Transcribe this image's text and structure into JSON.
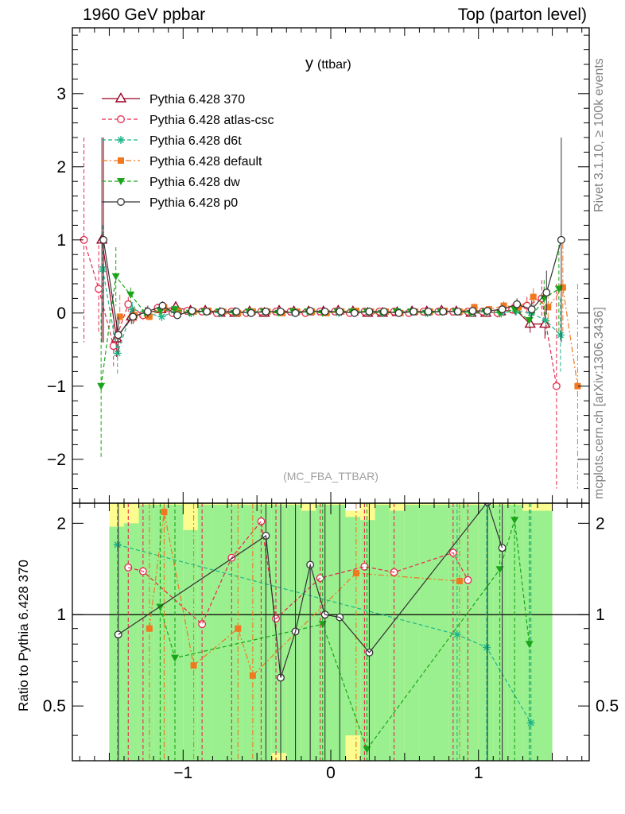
{
  "header": {
    "left": "1960 GeV ppbar",
    "right": "Top (parton level)"
  },
  "side": {
    "rivet": "Rivet 3.1.10, ≥ 100k events",
    "url": "mcplots.cern.ch [arXiv:1306.3436]"
  },
  "ratio_ylabel": "Ratio to Pythia 6.428 370",
  "chart_data": [
    {
      "type": "scatter",
      "title": "y",
      "title_suffix": "(ttbar)",
      "watermark": "(MC_FBA_TTBAR)",
      "xlim": [
        -1.75,
        1.75
      ],
      "ylim": [
        -2.6,
        3.9
      ],
      "yticks": [
        -2,
        -1,
        0,
        1,
        2,
        3
      ],
      "ytick_labels": [
        "−2",
        "−1",
        "0",
        "1",
        "2",
        "3"
      ],
      "x": [
        -1.65,
        -1.55,
        -1.45,
        -1.35,
        -1.25,
        -1.15,
        -1.05,
        -0.95,
        -0.85,
        -0.75,
        -0.65,
        -0.55,
        -0.45,
        -0.35,
        -0.25,
        -0.15,
        -0.05,
        0.05,
        0.15,
        0.25,
        0.35,
        0.45,
        0.55,
        0.65,
        0.75,
        0.85,
        0.95,
        1.05,
        1.15,
        1.25,
        1.35,
        1.45,
        1.55,
        1.65
      ],
      "series": [
        {
          "name": "Pythia 6.428 370",
          "color": "#9a0020",
          "marker": "triangle-open",
          "dash": "solid",
          "values": [
            null,
            1.0,
            -0.35,
            -0.05,
            0.0,
            0.05,
            0.08,
            0.03,
            0.03,
            0.0,
            0.0,
            0.02,
            0.0,
            0.03,
            0.02,
            0.02,
            0.02,
            0.03,
            0.02,
            0.0,
            0.0,
            0.01,
            0.02,
            0.02,
            0.03,
            0.02,
            0.0,
            0.0,
            0.02,
            0.05,
            -0.15,
            -0.15,
            null,
            null
          ],
          "errors": [
            null,
            1.4,
            0.25,
            0.1,
            0.08,
            0.06,
            0.05,
            0.04,
            0.04,
            0.04,
            0.04,
            0.04,
            0.04,
            0.04,
            0.04,
            0.04,
            0.04,
            0.04,
            0.04,
            0.04,
            0.04,
            0.04,
            0.04,
            0.04,
            0.04,
            0.04,
            0.05,
            0.05,
            0.06,
            0.08,
            0.12,
            0.2,
            null,
            null
          ]
        },
        {
          "name": "Pythia 6.428 atlas-csc",
          "color": "#e8284e",
          "marker": "circle-open",
          "dash": "dashed",
          "values": [
            1.0,
            0.33,
            -0.45,
            0.12,
            -0.03,
            0.07,
            0.0,
            0.03,
            0.02,
            0.0,
            0.02,
            0.0,
            0.02,
            0.02,
            0.02,
            0.0,
            0.02,
            0.02,
            0.0,
            0.02,
            0.02,
            0.02,
            0.0,
            0.02,
            0.02,
            0.02,
            0.02,
            0.02,
            0.0,
            0.05,
            0.1,
            0.2,
            -1.0,
            null
          ],
          "errors": [
            1.4,
            0.6,
            0.3,
            0.1,
            0.08,
            0.06,
            0.05,
            0.04,
            0.04,
            0.04,
            0.04,
            0.04,
            0.04,
            0.04,
            0.04,
            0.04,
            0.04,
            0.04,
            0.04,
            0.04,
            0.04,
            0.04,
            0.04,
            0.04,
            0.04,
            0.04,
            0.05,
            0.05,
            0.06,
            0.08,
            0.12,
            0.25,
            1.4,
            null
          ]
        },
        {
          "name": "Pythia 6.428 d6t",
          "color": "#1fb58a",
          "marker": "star",
          "dash": "dashed",
          "values": [
            null,
            0.6,
            -0.55,
            0.05,
            0.0,
            -0.05,
            0.03,
            0.0,
            0.02,
            0.0,
            0.02,
            0.0,
            0.02,
            0.02,
            0.0,
            0.02,
            0.02,
            0.0,
            0.02,
            0.02,
            0.0,
            0.02,
            0.02,
            0.0,
            0.02,
            0.02,
            0.0,
            0.02,
            0.0,
            0.03,
            0.0,
            -0.1,
            -0.3,
            null
          ],
          "errors": [
            null,
            0.6,
            0.3,
            0.1,
            0.08,
            0.06,
            0.05,
            0.04,
            0.04,
            0.04,
            0.04,
            0.04,
            0.04,
            0.04,
            0.04,
            0.04,
            0.04,
            0.04,
            0.04,
            0.04,
            0.04,
            0.04,
            0.04,
            0.04,
            0.04,
            0.04,
            0.05,
            0.05,
            0.06,
            0.08,
            0.12,
            0.2,
            0.5,
            null
          ]
        },
        {
          "name": "Pythia 6.428 default",
          "color": "#f07820",
          "marker": "square-filled",
          "dash": "dashdot",
          "values": [
            null,
            null,
            -0.05,
            -0.03,
            -0.05,
            0.08,
            0.02,
            0.02,
            0.03,
            0.02,
            0.0,
            0.02,
            0.02,
            0.0,
            0.02,
            0.02,
            0.0,
            0.02,
            0.03,
            0.02,
            0.02,
            0.0,
            0.02,
            0.02,
            0.03,
            0.02,
            0.08,
            0.05,
            0.1,
            0.08,
            0.22,
            0.08,
            0.35,
            -1.0
          ],
          "errors": [
            null,
            null,
            0.3,
            0.1,
            0.08,
            0.06,
            0.05,
            0.04,
            0.04,
            0.04,
            0.04,
            0.04,
            0.04,
            0.04,
            0.04,
            0.04,
            0.04,
            0.04,
            0.04,
            0.04,
            0.04,
            0.04,
            0.04,
            0.04,
            0.04,
            0.04,
            0.05,
            0.05,
            0.06,
            0.08,
            0.12,
            0.25,
            0.6,
            1.4
          ]
        },
        {
          "name": "Pythia 6.428 dw",
          "color": "#1aa518",
          "marker": "triangle-down-filled",
          "dash": "dashed",
          "values": [
            null,
            -1.0,
            0.5,
            0.25,
            0.0,
            0.03,
            0.05,
            0.0,
            0.02,
            0.02,
            0.0,
            0.02,
            0.02,
            0.0,
            0.02,
            0.02,
            0.0,
            0.02,
            0.02,
            0.02,
            0.0,
            0.02,
            0.02,
            0.0,
            0.02,
            0.02,
            0.0,
            0.02,
            0.0,
            0.05,
            -0.1,
            0.2,
            0.33,
            null
          ],
          "errors": [
            null,
            1.0,
            0.4,
            0.1,
            0.08,
            0.06,
            0.05,
            0.04,
            0.04,
            0.04,
            0.04,
            0.04,
            0.04,
            0.04,
            0.04,
            0.04,
            0.04,
            0.04,
            0.04,
            0.04,
            0.04,
            0.04,
            0.04,
            0.04,
            0.04,
            0.04,
            0.05,
            0.05,
            0.06,
            0.08,
            0.12,
            0.25,
            0.6,
            null
          ]
        },
        {
          "name": "Pythia 6.428 p0",
          "color": "#333333",
          "marker": "circle-open",
          "dash": "solid",
          "values": [
            null,
            1.0,
            -0.3,
            -0.05,
            0.02,
            0.1,
            -0.03,
            0.03,
            0.02,
            0.02,
            0.02,
            0.0,
            0.02,
            0.02,
            0.0,
            0.03,
            0.02,
            0.02,
            0.0,
            0.02,
            0.02,
            0.0,
            0.02,
            0.02,
            0.02,
            0.02,
            0.03,
            0.03,
            0.05,
            0.12,
            0.05,
            0.28,
            1.0,
            null
          ],
          "errors": [
            null,
            1.4,
            0.25,
            0.1,
            0.08,
            0.06,
            0.05,
            0.04,
            0.04,
            0.04,
            0.04,
            0.04,
            0.04,
            0.04,
            0.04,
            0.04,
            0.04,
            0.04,
            0.04,
            0.04,
            0.04,
            0.04,
            0.04,
            0.04,
            0.04,
            0.04,
            0.05,
            0.05,
            0.06,
            0.08,
            0.12,
            0.3,
            1.4,
            null
          ]
        }
      ]
    },
    {
      "type": "scatter",
      "xlim": [
        -1.75,
        1.75
      ],
      "ylim": [
        0.33,
        2.33
      ],
      "xticks": [
        -1,
        0,
        1
      ],
      "xtick_labels": [
        "−1",
        "0",
        "1"
      ],
      "yticks": [
        0.5,
        1,
        2
      ],
      "ytick_labels": [
        "0.5",
        "1",
        "2"
      ],
      "reference_line": 1,
      "band_edges": [
        -1.5,
        -1.4,
        -1.3,
        -1.2,
        -1.1,
        -1.0,
        -0.9,
        -0.8,
        -0.7,
        -0.6,
        -0.5,
        -0.4,
        -0.3,
        -0.2,
        -0.1,
        0.0,
        0.1,
        0.2,
        0.3,
        0.4,
        0.5,
        0.6,
        0.7,
        0.8,
        0.9,
        1.0,
        1.1,
        1.2,
        1.3,
        1.4,
        1.5
      ],
      "band_inner": [
        [
          0.3,
          1.95
        ],
        [
          0.3,
          2.0
        ],
        [
          0.3,
          2.3
        ],
        [
          0.3,
          2.3
        ],
        [
          0.3,
          2.3
        ],
        [
          0.3,
          1.9
        ],
        [
          0.3,
          2.3
        ],
        [
          0.3,
          2.3
        ],
        [
          0.3,
          2.3
        ],
        [
          0.3,
          2.3
        ],
        [
          0.3,
          2.3
        ],
        [
          0.35,
          2.3
        ],
        [
          0.3,
          2.3
        ],
        [
          0.3,
          2.2
        ],
        [
          0.3,
          2.3
        ],
        [
          0.3,
          2.3
        ],
        [
          0.4,
          2.1
        ],
        [
          0.3,
          2.05
        ],
        [
          0.3,
          2.3
        ],
        [
          0.3,
          2.2
        ],
        [
          0.3,
          2.3
        ],
        [
          0.3,
          2.3
        ],
        [
          0.3,
          2.3
        ],
        [
          0.3,
          2.3
        ],
        [
          0.3,
          2.3
        ],
        [
          0.3,
          2.3
        ],
        [
          0.3,
          2.3
        ],
        [
          0.3,
          2.3
        ],
        [
          0.3,
          2.2
        ],
        [
          0.3,
          2.2
        ]
      ],
      "band_outer": [
        [
          0.3,
          2.33
        ],
        [
          0.3,
          2.33
        ],
        [
          0.3,
          2.33
        ],
        [
          0.3,
          2.33
        ],
        [
          0.3,
          2.33
        ],
        [
          0.3,
          2.33
        ],
        [
          0.3,
          2.33
        ],
        [
          0.3,
          2.33
        ],
        [
          0.3,
          2.33
        ],
        [
          0.3,
          2.33
        ],
        [
          0.3,
          2.33
        ],
        [
          0.3,
          2.33
        ],
        [
          0.3,
          2.33
        ],
        [
          0.3,
          2.33
        ],
        [
          0.3,
          2.33
        ],
        [
          0.3,
          2.33
        ],
        [
          0.3,
          2.2
        ],
        [
          0.3,
          2.33
        ],
        [
          0.3,
          2.33
        ],
        [
          0.3,
          2.33
        ],
        [
          0.3,
          2.33
        ],
        [
          0.3,
          2.33
        ],
        [
          0.3,
          2.33
        ],
        [
          0.3,
          2.33
        ],
        [
          0.3,
          2.33
        ],
        [
          0.3,
          2.33
        ],
        [
          0.3,
          2.33
        ],
        [
          0.3,
          2.33
        ],
        [
          0.3,
          2.33
        ],
        [
          0.3,
          2.33
        ]
      ],
      "x": [
        -1.45,
        -1.35,
        -1.25,
        -1.15,
        -1.05,
        -0.95,
        -0.85,
        -0.75,
        -0.65,
        -0.55,
        -0.45,
        -0.35,
        -0.25,
        -0.15,
        -0.05,
        0.05,
        0.15,
        0.25,
        0.35,
        0.45,
        0.55,
        0.65,
        0.75,
        0.85,
        0.95,
        1.05,
        1.15,
        1.25,
        1.35,
        1.45
      ],
      "series": [
        {
          "name": "Pythia 6.428 atlas-csc",
          "color": "#e8284e",
          "marker": "circle-open",
          "dash": "dashed",
          "values": [
            null,
            1.43,
            1.39,
            null,
            null,
            null,
            0.93,
            null,
            1.54,
            null,
            2.03,
            0.97,
            null,
            null,
            1.32,
            null,
            null,
            1.44,
            null,
            1.38,
            null,
            null,
            null,
            1.6,
            1.3,
            null,
            null,
            null,
            null,
            null
          ]
        },
        {
          "name": "Pythia 6.428 d6t",
          "color": "#1fb58a",
          "marker": "star",
          "dash": "dashed",
          "values": [
            1.7,
            null,
            null,
            null,
            null,
            null,
            null,
            null,
            null,
            null,
            null,
            null,
            null,
            null,
            null,
            null,
            null,
            null,
            null,
            null,
            null,
            null,
            null,
            0.86,
            null,
            0.78,
            null,
            null,
            0.44,
            null
          ]
        },
        {
          "name": "Pythia 6.428 default",
          "color": "#f07820",
          "marker": "square-filled",
          "dash": "dashdot",
          "values": [
            null,
            null,
            0.9,
            2.18,
            null,
            0.68,
            null,
            null,
            0.9,
            0.63,
            null,
            null,
            null,
            null,
            null,
            null,
            1.37,
            null,
            null,
            null,
            null,
            null,
            null,
            1.29,
            null,
            null,
            null,
            null,
            null,
            null
          ]
        },
        {
          "name": "Pythia 6.428 dw",
          "color": "#1aa518",
          "marker": "triangle-down-filled",
          "dash": "dashed",
          "values": [
            null,
            null,
            null,
            1.06,
            0.72,
            null,
            null,
            null,
            null,
            null,
            null,
            null,
            null,
            null,
            0.93,
            null,
            null,
            0.36,
            null,
            null,
            null,
            null,
            null,
            null,
            null,
            null,
            1.41,
            2.05,
            0.8,
            null
          ]
        },
        {
          "name": "Pythia 6.428 p0",
          "color": "#333333",
          "marker": "circle-open",
          "dash": "solid",
          "values": [
            0.86,
            null,
            null,
            null,
            null,
            null,
            null,
            null,
            null,
            null,
            1.82,
            0.62,
            0.88,
            1.46,
            1.0,
            0.98,
            null,
            0.75,
            null,
            null,
            null,
            null,
            null,
            null,
            null,
            2.35,
            1.66,
            null,
            null,
            null
          ]
        }
      ]
    }
  ]
}
